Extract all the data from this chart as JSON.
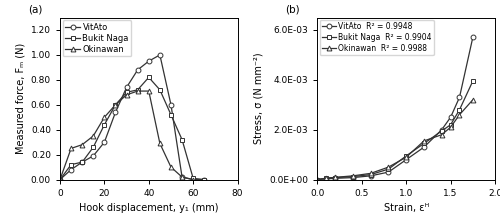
{
  "panel_a": {
    "label": "(a)",
    "xlabel": "Hook displacement, y₁ (mm)",
    "ylabel": "Measured force, Fₘ (N)",
    "xlim": [
      0,
      80
    ],
    "ylim": [
      0,
      1.3
    ],
    "xticks": [
      0,
      20,
      40,
      60,
      80
    ],
    "yticks": [
      0.0,
      0.2,
      0.4,
      0.6,
      0.8,
      1.0,
      1.2
    ],
    "series": [
      {
        "label": "VitAto",
        "marker": "o",
        "x": [
          0,
          5,
          10,
          15,
          20,
          25,
          30,
          35,
          40,
          45,
          50,
          55,
          60,
          65
        ],
        "y": [
          0.0,
          0.08,
          0.14,
          0.19,
          0.3,
          0.54,
          0.74,
          0.88,
          0.95,
          1.0,
          0.6,
          0.02,
          0.0,
          0.0
        ]
      },
      {
        "label": "Bukit Naga",
        "marker": "s",
        "x": [
          0,
          5,
          10,
          15,
          20,
          25,
          30,
          35,
          40,
          45,
          50,
          55,
          60,
          65
        ],
        "y": [
          0.0,
          0.12,
          0.14,
          0.26,
          0.44,
          0.6,
          0.7,
          0.72,
          0.82,
          0.72,
          0.52,
          0.32,
          0.01,
          0.0
        ]
      },
      {
        "label": "Okinawan",
        "marker": "^",
        "x": [
          0,
          5,
          10,
          15,
          20,
          25,
          30,
          35,
          40,
          45,
          50,
          55,
          60
        ],
        "y": [
          0.0,
          0.25,
          0.28,
          0.35,
          0.5,
          0.6,
          0.68,
          0.71,
          0.71,
          0.29,
          0.1,
          0.02,
          0.0
        ]
      }
    ]
  },
  "panel_b": {
    "label": "(b)",
    "xlabel": "Strain, εᴴ",
    "ylabel": "Stress, σ (N mm⁻²)",
    "xlim": [
      0.0,
      2.0
    ],
    "ylim": [
      0.0,
      0.0065
    ],
    "xticks": [
      0.0,
      0.5,
      1.0,
      1.5,
      2.0
    ],
    "yticks": [
      0.0,
      0.002,
      0.004,
      0.006
    ],
    "ytick_labels": [
      "0.0E+00",
      "2.0E-03",
      "4.0E-03",
      "6.0E-03"
    ],
    "series": [
      {
        "label": "VitAto",
        "r2": "R² = 0.9948",
        "marker": "o",
        "x": [
          0.0,
          0.1,
          0.2,
          0.4,
          0.6,
          0.8,
          1.0,
          1.2,
          1.4,
          1.5,
          1.6,
          1.75
        ],
        "y": [
          0.0,
          3e-05,
          5e-05,
          8e-05,
          0.00015,
          0.0003,
          0.0008,
          0.0013,
          0.002,
          0.0025,
          0.0033,
          0.0057
        ]
      },
      {
        "label": "Bukit Naga",
        "r2": "R² = 0.9904",
        "marker": "s",
        "x": [
          0.0,
          0.1,
          0.2,
          0.4,
          0.6,
          0.8,
          1.0,
          1.2,
          1.4,
          1.5,
          1.6,
          1.75
        ],
        "y": [
          0.0,
          5e-05,
          8e-05,
          0.00012,
          0.0002,
          0.00042,
          0.00095,
          0.00145,
          0.00195,
          0.0022,
          0.0028,
          0.00395
        ]
      },
      {
        "label": "Okinawan",
        "r2": "R² = 0.9988",
        "marker": "^",
        "x": [
          0.0,
          0.1,
          0.2,
          0.4,
          0.6,
          0.8,
          1.0,
          1.2,
          1.4,
          1.5,
          1.6,
          1.75
        ],
        "y": [
          0.0,
          6e-05,
          9e-05,
          0.00015,
          0.00025,
          0.0005,
          0.0009,
          0.00155,
          0.0018,
          0.0021,
          0.0026,
          0.0032
        ]
      }
    ]
  },
  "line_color": "#333333",
  "bg_color": "#ffffff",
  "fontsize": 7.0
}
